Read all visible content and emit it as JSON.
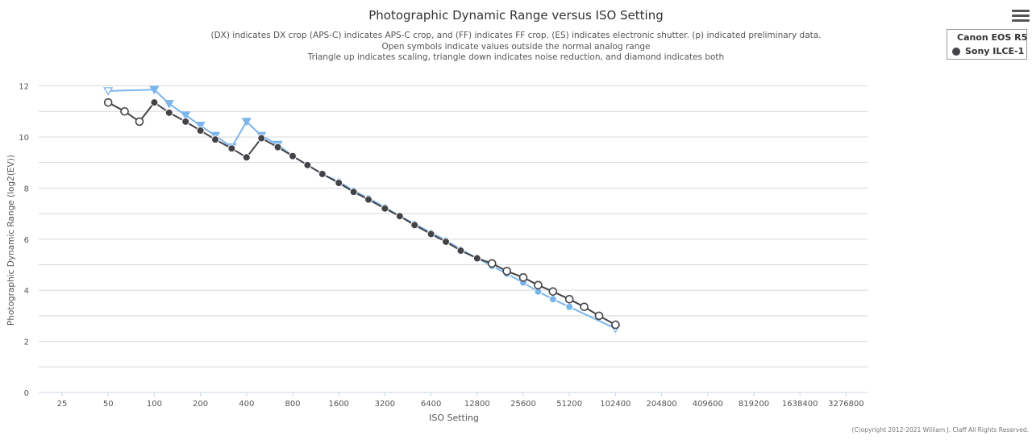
{
  "chart_data": {
    "type": "line",
    "title": "Photographic Dynamic Range versus ISO Setting",
    "subtitle": [
      "(DX) indicates DX crop (APS-C) indicates APS-C crop, and (FF) indicates FF crop. (ES) indicates electronic shutter. (p) indicated preliminary data.",
      "Open symbols indicate values outside the normal analog range",
      "Triangle up indicates scaling, triangle down indicates noise reduction, and diamond indicates both"
    ],
    "xlabel": "ISO Setting",
    "ylabel": "Photographic Dynamic Range (log2(EV))",
    "x_scale": "log2",
    "x_ticks": [
      "25",
      "50",
      "100",
      "200",
      "400",
      "800",
      "1600",
      "3200",
      "6400",
      "12800",
      "25600",
      "51200",
      "102400",
      "204800",
      "409600",
      "819200",
      "1638400",
      "3276800"
    ],
    "y_ticks": [
      0,
      2,
      4,
      6,
      8,
      10,
      12
    ],
    "ylim": [
      0,
      12.9
    ],
    "grid": "horizontal",
    "legend_position": "top-right",
    "series": [
      {
        "name": "Canon EOS R5",
        "color": "#7cb5ec",
        "points": [
          {
            "x": 50,
            "y": 11.8,
            "marker": "triangle-down-open"
          },
          {
            "x": 100,
            "y": 11.85,
            "marker": "triangle-down"
          },
          {
            "x": 125,
            "y": 11.3,
            "marker": "triangle-down"
          },
          {
            "x": 160,
            "y": 10.85,
            "marker": "triangle-down"
          },
          {
            "x": 200,
            "y": 10.45,
            "marker": "triangle-down"
          },
          {
            "x": 250,
            "y": 10.05,
            "marker": "triangle-down"
          },
          {
            "x": 320,
            "y": 9.6,
            "marker": "triangle-down"
          },
          {
            "x": 400,
            "y": 10.6,
            "marker": "triangle-down"
          },
          {
            "x": 500,
            "y": 10.05,
            "marker": "triangle-down"
          },
          {
            "x": 640,
            "y": 9.7,
            "marker": "triangle-down"
          },
          {
            "x": 800,
            "y": 9.25,
            "marker": "circle"
          },
          {
            "x": 1000,
            "y": 8.9,
            "marker": "circle"
          },
          {
            "x": 1250,
            "y": 8.55,
            "marker": "circle"
          },
          {
            "x": 1600,
            "y": 8.25,
            "marker": "circle"
          },
          {
            "x": 2000,
            "y": 7.9,
            "marker": "circle"
          },
          {
            "x": 2500,
            "y": 7.6,
            "marker": "circle"
          },
          {
            "x": 3200,
            "y": 7.25,
            "marker": "circle"
          },
          {
            "x": 4000,
            "y": 6.9,
            "marker": "circle"
          },
          {
            "x": 5000,
            "y": 6.6,
            "marker": "circle"
          },
          {
            "x": 6400,
            "y": 6.25,
            "marker": "circle"
          },
          {
            "x": 8000,
            "y": 5.95,
            "marker": "circle"
          },
          {
            "x": 10000,
            "y": 5.6,
            "marker": "circle"
          },
          {
            "x": 12800,
            "y": 5.25,
            "marker": "circle"
          },
          {
            "x": 16000,
            "y": 4.95,
            "marker": "circle"
          },
          {
            "x": 20000,
            "y": 4.65,
            "marker": "circle"
          },
          {
            "x": 25600,
            "y": 4.3,
            "marker": "circle"
          },
          {
            "x": 32000,
            "y": 3.95,
            "marker": "circle"
          },
          {
            "x": 40000,
            "y": 3.65,
            "marker": "circle"
          },
          {
            "x": 51200,
            "y": 3.35,
            "marker": "circle"
          },
          {
            "x": 102400,
            "y": 2.5,
            "marker": "triangle-down-open"
          }
        ]
      },
      {
        "name": "Sony ILCE-1",
        "color": "#434348",
        "points": [
          {
            "x": 50,
            "y": 11.35,
            "marker": "circle-open"
          },
          {
            "x": 64,
            "y": 11.0,
            "marker": "circle-open"
          },
          {
            "x": 80,
            "y": 10.6,
            "marker": "circle-open"
          },
          {
            "x": 100,
            "y": 11.35,
            "marker": "circle"
          },
          {
            "x": 125,
            "y": 10.95,
            "marker": "circle"
          },
          {
            "x": 160,
            "y": 10.6,
            "marker": "circle"
          },
          {
            "x": 200,
            "y": 10.25,
            "marker": "circle"
          },
          {
            "x": 250,
            "y": 9.9,
            "marker": "circle"
          },
          {
            "x": 320,
            "y": 9.55,
            "marker": "circle"
          },
          {
            "x": 400,
            "y": 9.2,
            "marker": "circle"
          },
          {
            "x": 500,
            "y": 9.95,
            "marker": "circle"
          },
          {
            "x": 640,
            "y": 9.6,
            "marker": "circle"
          },
          {
            "x": 800,
            "y": 9.25,
            "marker": "circle"
          },
          {
            "x": 1000,
            "y": 8.9,
            "marker": "circle"
          },
          {
            "x": 1250,
            "y": 8.55,
            "marker": "circle"
          },
          {
            "x": 1600,
            "y": 8.2,
            "marker": "circle"
          },
          {
            "x": 2000,
            "y": 7.85,
            "marker": "circle"
          },
          {
            "x": 2500,
            "y": 7.55,
            "marker": "circle"
          },
          {
            "x": 3200,
            "y": 7.2,
            "marker": "circle"
          },
          {
            "x": 4000,
            "y": 6.9,
            "marker": "circle"
          },
          {
            "x": 5000,
            "y": 6.55,
            "marker": "circle"
          },
          {
            "x": 6400,
            "y": 6.2,
            "marker": "circle"
          },
          {
            "x": 8000,
            "y": 5.9,
            "marker": "circle"
          },
          {
            "x": 10000,
            "y": 5.55,
            "marker": "circle"
          },
          {
            "x": 12800,
            "y": 5.25,
            "marker": "circle"
          },
          {
            "x": 16000,
            "y": 5.05,
            "marker": "circle-open"
          },
          {
            "x": 20000,
            "y": 4.75,
            "marker": "circle-open"
          },
          {
            "x": 25600,
            "y": 4.5,
            "marker": "circle-open"
          },
          {
            "x": 32000,
            "y": 4.2,
            "marker": "circle-open"
          },
          {
            "x": 40000,
            "y": 3.95,
            "marker": "circle-open"
          },
          {
            "x": 51200,
            "y": 3.65,
            "marker": "circle-open"
          },
          {
            "x": 64000,
            "y": 3.35,
            "marker": "circle-open"
          },
          {
            "x": 80000,
            "y": 3.0,
            "marker": "circle-open"
          },
          {
            "x": 102400,
            "y": 2.65,
            "marker": "circle-open"
          }
        ]
      }
    ]
  },
  "menu": {
    "icon": "hamburger-menu-icon"
  },
  "legend": {
    "items": [
      "Canon EOS R5",
      "Sony ILCE-1"
    ]
  },
  "footer": {
    "copyright": "(C)opyright 2012-2021 William J. Claff All Rights Reserved."
  }
}
